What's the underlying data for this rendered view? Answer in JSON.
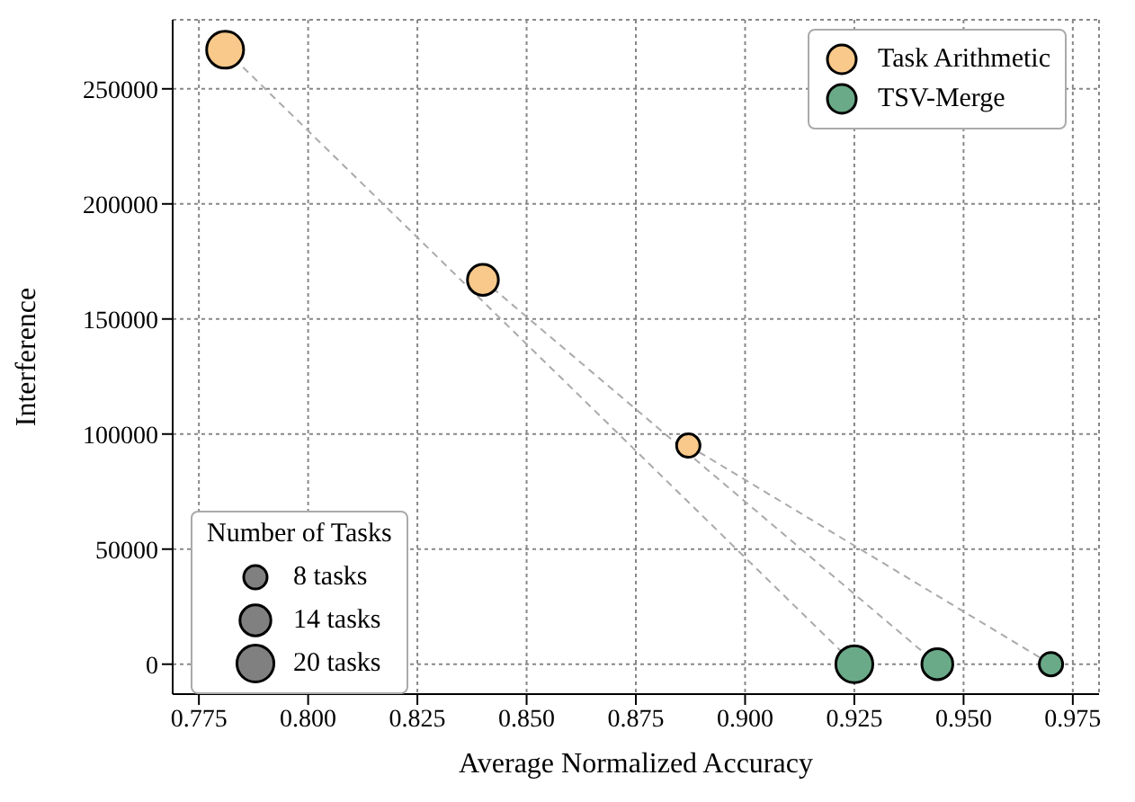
{
  "chart_data": {
    "type": "bubble",
    "xlabel": "Average Normalized Accuracy",
    "ylabel": "Interference",
    "legend": "top right",
    "legend_title": "Number of Tasks",
    "grid": true,
    "xlim": [
      0.769,
      0.981
    ],
    "ylim": [
      -13000,
      280000
    ],
    "xticks": [
      {
        "value": 0.775,
        "label": "0.775"
      },
      {
        "value": 0.8,
        "label": "0.800"
      },
      {
        "value": 0.825,
        "label": "0.825"
      },
      {
        "value": 0.85,
        "label": "0.850"
      },
      {
        "value": 0.875,
        "label": "0.875"
      },
      {
        "value": 0.9,
        "label": "0.900"
      },
      {
        "value": 0.925,
        "label": "0.925"
      },
      {
        "value": 0.95,
        "label": "0.950"
      },
      {
        "value": 0.975,
        "label": "0.975"
      }
    ],
    "yticks": [
      0,
      50000,
      100000,
      150000,
      200000,
      250000
    ],
    "size_legend": [
      {
        "value": 8,
        "label": "8 tasks"
      },
      {
        "value": 14,
        "label": "14 tasks"
      },
      {
        "value": 20,
        "label": "20 tasks"
      }
    ],
    "series": [
      {
        "type": "line",
        "color": "#aaaaaa",
        "line_style": "dashed",
        "x": [
          0.781,
          0.925
        ],
        "values": [
          267000,
          0
        ]
      },
      {
        "type": "line",
        "color": "#aaaaaa",
        "line_style": "dashed",
        "x": [
          0.84,
          0.944
        ],
        "values": [
          167000,
          0
        ]
      },
      {
        "type": "line",
        "color": "#aaaaaa",
        "line_style": "dashed",
        "x": [
          0.887,
          0.97
        ],
        "values": [
          95000,
          0
        ]
      },
      {
        "name": "Task Arithmetic",
        "color": "#f8c98a",
        "x": [
          0.781,
          0.84,
          0.887
        ],
        "values": [
          267000,
          167000,
          95000
        ],
        "sizes": [
          20,
          14,
          8
        ]
      },
      {
        "name": "TSV-Merge",
        "color": "#6aaa88",
        "x": [
          0.925,
          0.944,
          0.97
        ],
        "values": [
          0,
          0,
          0
        ],
        "sizes": [
          20,
          14,
          8
        ]
      }
    ]
  }
}
